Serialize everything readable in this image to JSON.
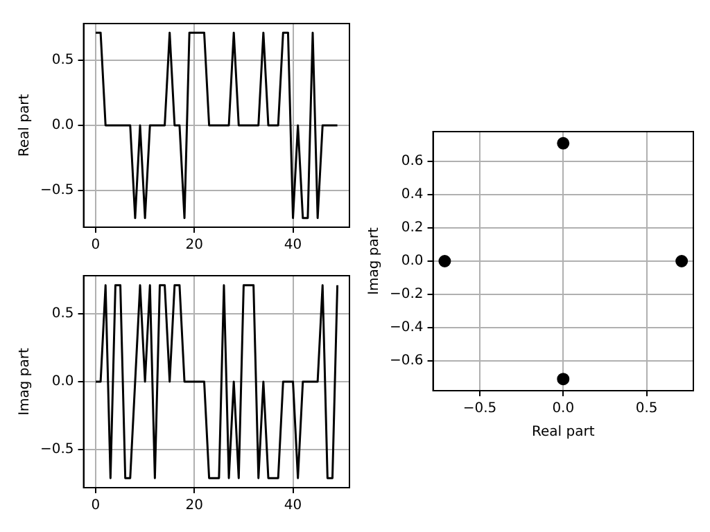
{
  "chart_data": [
    {
      "type": "line",
      "ylabel": "Real part",
      "xlim": [
        -2.45,
        51.45
      ],
      "ylim": [
        -0.78,
        0.78
      ],
      "xticks": [
        0,
        20,
        40
      ],
      "yticks": [
        {
          "value": -0.5,
          "label": "−0.5"
        },
        {
          "value": 0,
          "label": "0.0"
        },
        {
          "value": 0.5,
          "label": "0.5"
        }
      ],
      "grid": true,
      "marker": "none",
      "x": [
        0,
        1,
        2,
        3,
        4,
        5,
        6,
        7,
        8,
        9,
        10,
        11,
        12,
        13,
        14,
        15,
        16,
        17,
        18,
        19,
        20,
        21,
        22,
        23,
        24,
        25,
        26,
        27,
        28,
        29,
        30,
        31,
        32,
        33,
        34,
        35,
        36,
        37,
        38,
        39,
        40,
        41,
        42,
        43,
        44,
        45,
        46,
        47,
        48,
        49
      ],
      "series": [
        {
          "color": "#000000",
          "values": [
            0.71,
            0.71,
            0,
            0,
            0,
            0,
            0,
            0,
            -0.71,
            0,
            -0.71,
            0,
            0,
            0,
            0,
            0.71,
            0,
            0,
            -0.71,
            0.71,
            0.71,
            0.71,
            0.71,
            0,
            0,
            0,
            0,
            0,
            0.71,
            0,
            0,
            0,
            0,
            0,
            0.71,
            0,
            0,
            0,
            0.71,
            0.71,
            -0.71,
            0,
            -0.71,
            -0.71,
            0.71,
            -0.71,
            0,
            0,
            0,
            0
          ]
        }
      ]
    },
    {
      "type": "line",
      "ylabel": "Imag part",
      "xlim": [
        -2.45,
        51.45
      ],
      "ylim": [
        -0.78,
        0.78
      ],
      "xticks": [
        0,
        20,
        40
      ],
      "yticks": [
        {
          "value": -0.5,
          "label": "−0.5"
        },
        {
          "value": 0,
          "label": "0.0"
        },
        {
          "value": 0.5,
          "label": "0.5"
        }
      ],
      "grid": true,
      "marker": "none",
      "x": [
        0,
        1,
        2,
        3,
        4,
        5,
        6,
        7,
        8,
        9,
        10,
        11,
        12,
        13,
        14,
        15,
        16,
        17,
        18,
        19,
        20,
        21,
        22,
        23,
        24,
        25,
        26,
        27,
        28,
        29,
        30,
        31,
        32,
        33,
        34,
        35,
        36,
        37,
        38,
        39,
        40,
        41,
        42,
        43,
        44,
        45,
        46,
        47,
        48,
        49
      ],
      "series": [
        {
          "color": "#000000",
          "values": [
            0,
            0,
            0.71,
            -0.71,
            0.71,
            0.71,
            -0.71,
            -0.71,
            0,
            0.71,
            0,
            0.71,
            -0.71,
            0.71,
            0.71,
            0,
            0.71,
            0.71,
            0,
            0,
            0,
            0,
            0,
            -0.71,
            -0.71,
            -0.71,
            0.71,
            -0.71,
            0,
            -0.71,
            0.71,
            0.71,
            0.71,
            -0.71,
            0,
            -0.71,
            -0.71,
            -0.71,
            0,
            0,
            0,
            -0.71,
            0,
            0,
            0,
            0,
            0.71,
            -0.71,
            -0.71,
            0.71
          ]
        }
      ]
    },
    {
      "type": "scatter",
      "xlabel": "Real part",
      "ylabel": "Imag part",
      "xlim": [
        -0.78,
        0.78
      ],
      "ylim": [
        -0.78,
        0.78
      ],
      "xticks": [
        {
          "value": -0.5,
          "label": "−0.5"
        },
        {
          "value": 0,
          "label": "0.0"
        },
        {
          "value": 0.5,
          "label": "0.5"
        }
      ],
      "yticks": [
        {
          "value": -0.6,
          "label": "−0.6"
        },
        {
          "value": -0.4,
          "label": "−0.4"
        },
        {
          "value": -0.2,
          "label": "−0.2"
        },
        {
          "value": 0,
          "label": "0.0"
        },
        {
          "value": 0.2,
          "label": "0.2"
        },
        {
          "value": 0.4,
          "label": "0.4"
        },
        {
          "value": 0.6,
          "label": "0.6"
        }
      ],
      "grid": true,
      "marker": "circle",
      "x": [
        0.71,
        0,
        -0.71,
        0
      ],
      "series": [
        {
          "color": "#000000",
          "values": [
            0,
            0.71,
            0,
            -0.71
          ]
        }
      ]
    }
  ]
}
